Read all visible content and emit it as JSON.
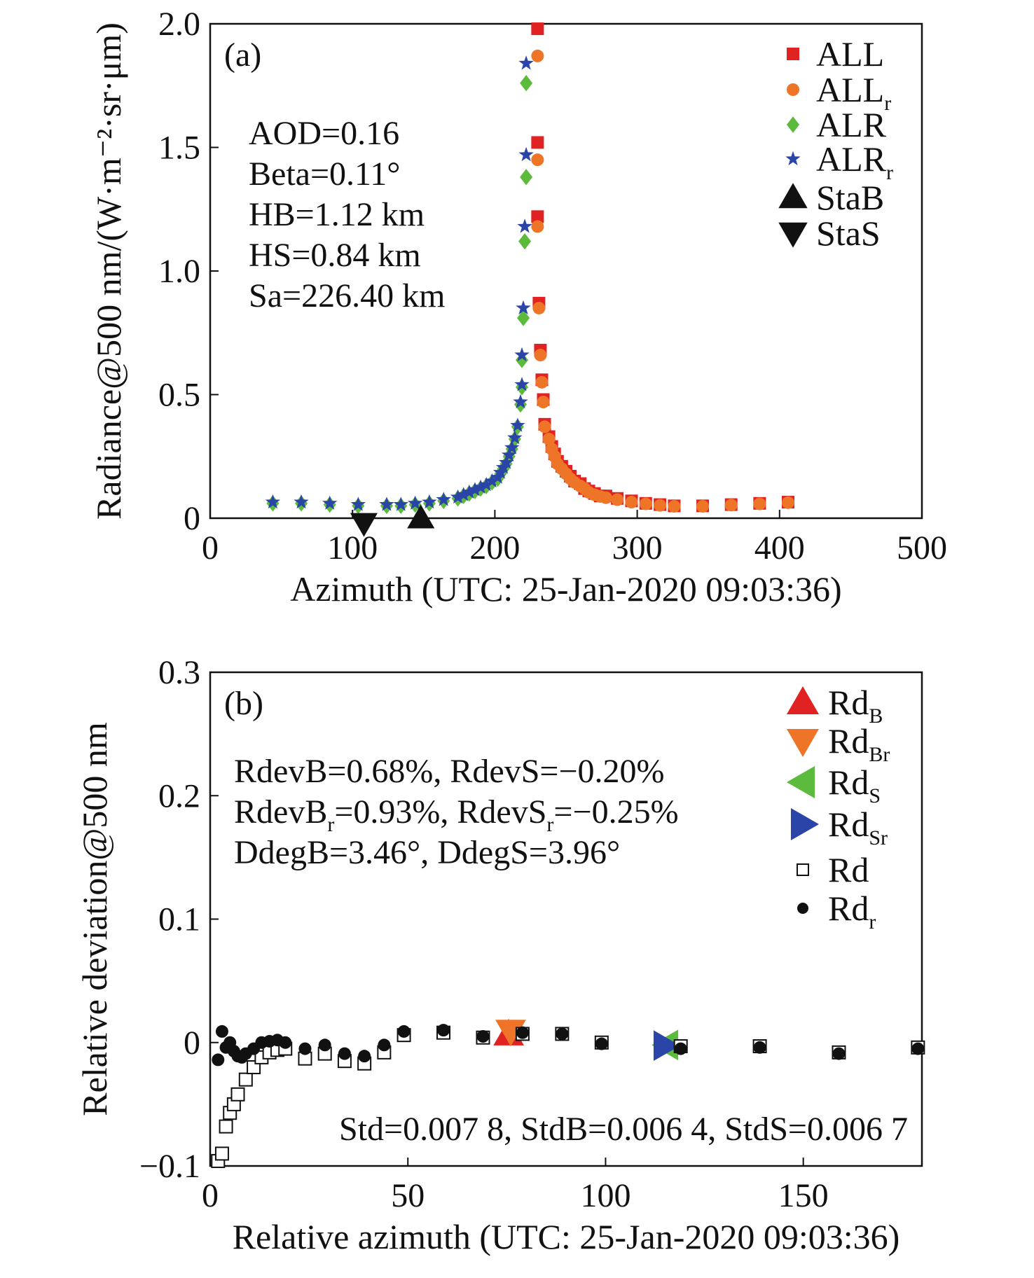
{
  "colors": {
    "ALL": "#e02222",
    "ALLr": "#ee7428",
    "ALR": "#5cba3c",
    "ALRr": "#2b44a8",
    "black": "#111111"
  },
  "chart_data": [
    {
      "type": "scatter",
      "panel_label": "(a)",
      "xlabel": "Azimuth (UTC: 25-Jan-2020 09:03:36)",
      "ylabel": "Radiance@500 nm/(W·m⁻²·sr·μm)",
      "xlim": [
        0,
        500
      ],
      "ylim": [
        0,
        2.0
      ],
      "xticks": [
        "0",
        "100",
        "200",
        "300",
        "400",
        "500"
      ],
      "yticks": [
        "0",
        "0.5",
        "1.0",
        "1.5",
        "2.0"
      ],
      "grid": false,
      "legend_position": "top-right",
      "annotations": [
        "AOD=0.16",
        "Beta=0.11°",
        "HB=1.12 km",
        "HS=0.84 km",
        "Sa=226.40 km"
      ],
      "series": [
        {
          "name": "ALL",
          "marker": "square",
          "color": "#e02222",
          "points": [
            [
              230,
              1.98
            ],
            [
              230,
              1.52
            ],
            [
              230,
              1.22
            ],
            [
              231,
              0.87
            ],
            [
              232,
              0.68
            ],
            [
              233,
              0.56
            ],
            [
              234,
              0.48
            ],
            [
              235,
              0.38
            ],
            [
              238,
              0.33
            ],
            [
              240,
              0.29
            ],
            [
              242,
              0.26
            ],
            [
              244,
              0.23
            ],
            [
              247,
              0.21
            ],
            [
              250,
              0.19
            ],
            [
              253,
              0.17
            ],
            [
              256,
              0.15
            ],
            [
              260,
              0.14
            ],
            [
              263,
              0.12
            ],
            [
              266,
              0.11
            ],
            [
              270,
              0.1
            ],
            [
              274,
              0.09
            ],
            [
              278,
              0.09
            ],
            [
              286,
              0.08
            ],
            [
              296,
              0.07
            ],
            [
              306,
              0.06
            ],
            [
              316,
              0.055
            ],
            [
              326,
              0.05
            ],
            [
              346,
              0.05
            ],
            [
              366,
              0.055
            ],
            [
              386,
              0.06
            ],
            [
              406,
              0.065
            ]
          ]
        },
        {
          "name": "ALLr",
          "marker": "circle",
          "color": "#ee7428",
          "points": [
            [
              230,
              1.87
            ],
            [
              230,
              1.45
            ],
            [
              230,
              1.18
            ],
            [
              231,
              0.85
            ],
            [
              232,
              0.66
            ],
            [
              233,
              0.55
            ],
            [
              234,
              0.47
            ],
            [
              235,
              0.37
            ],
            [
              238,
              0.32
            ],
            [
              240,
              0.28
            ],
            [
              242,
              0.25
            ],
            [
              244,
              0.22
            ],
            [
              247,
              0.2
            ],
            [
              250,
              0.18
            ],
            [
              253,
              0.16
            ],
            [
              256,
              0.145
            ],
            [
              260,
              0.13
            ],
            [
              263,
              0.12
            ],
            [
              266,
              0.105
            ],
            [
              270,
              0.095
            ],
            [
              274,
              0.088
            ],
            [
              278,
              0.083
            ],
            [
              286,
              0.075
            ],
            [
              296,
              0.065
            ],
            [
              306,
              0.058
            ],
            [
              316,
              0.052
            ],
            [
              326,
              0.048
            ],
            [
              346,
              0.048
            ],
            [
              366,
              0.053
            ],
            [
              386,
              0.058
            ],
            [
              406,
              0.063
            ]
          ]
        },
        {
          "name": "ALR",
          "marker": "diamond",
          "color": "#5cba3c",
          "points": [
            [
              44,
              0.06
            ],
            [
              64,
              0.06
            ],
            [
              84,
              0.055
            ],
            [
              104,
              0.05
            ],
            [
              124,
              0.05
            ],
            [
              134,
              0.05
            ],
            [
              144,
              0.055
            ],
            [
              154,
              0.06
            ],
            [
              164,
              0.07
            ],
            [
              174,
              0.08
            ],
            [
              178,
              0.09
            ],
            [
              182,
              0.1
            ],
            [
              186,
              0.11
            ],
            [
              190,
              0.12
            ],
            [
              194,
              0.13
            ],
            [
              198,
              0.145
            ],
            [
              202,
              0.16
            ],
            [
              204,
              0.18
            ],
            [
              206,
              0.2
            ],
            [
              208,
              0.22
            ],
            [
              210,
              0.25
            ],
            [
              212,
              0.28
            ],
            [
              214,
              0.32
            ],
            [
              216,
              0.37
            ],
            [
              218,
              0.46
            ],
            [
              219,
              0.53
            ],
            [
              219,
              0.64
            ],
            [
              220,
              0.81
            ],
            [
              221,
              1.12
            ],
            [
              222,
              1.38
            ],
            [
              222,
              1.76
            ]
          ]
        },
        {
          "name": "ALRr",
          "marker": "star",
          "color": "#2b44a8",
          "points": [
            [
              44,
              0.065
            ],
            [
              64,
              0.065
            ],
            [
              84,
              0.06
            ],
            [
              104,
              0.055
            ],
            [
              124,
              0.055
            ],
            [
              134,
              0.055
            ],
            [
              144,
              0.06
            ],
            [
              154,
              0.065
            ],
            [
              164,
              0.075
            ],
            [
              174,
              0.085
            ],
            [
              178,
              0.095
            ],
            [
              182,
              0.105
            ],
            [
              186,
              0.115
            ],
            [
              190,
              0.125
            ],
            [
              194,
              0.135
            ],
            [
              198,
              0.15
            ],
            [
              202,
              0.165
            ],
            [
              204,
              0.185
            ],
            [
              206,
              0.205
            ],
            [
              208,
              0.225
            ],
            [
              210,
              0.255
            ],
            [
              212,
              0.285
            ],
            [
              214,
              0.325
            ],
            [
              216,
              0.375
            ],
            [
              218,
              0.47
            ],
            [
              219,
              0.54
            ],
            [
              219,
              0.66
            ],
            [
              220,
              0.85
            ],
            [
              221,
              1.18
            ],
            [
              222,
              1.47
            ],
            [
              222,
              1.84
            ]
          ]
        },
        {
          "name": "StaB",
          "marker": "triangle-up",
          "color": "#111111",
          "points": [
            [
              148,
              0.0
            ]
          ]
        },
        {
          "name": "StaS",
          "marker": "triangle-down",
          "color": "#111111",
          "points": [
            [
              108,
              -0.02
            ]
          ]
        }
      ]
    },
    {
      "type": "scatter",
      "panel_label": "(b)",
      "xlabel": "Relative azimuth (UTC: 25-Jan-2020 09:03:36)",
      "ylabel": "Relative deviation@500 nm",
      "xlim": [
        0,
        180
      ],
      "ylim": [
        -0.1,
        0.3
      ],
      "xticks": [
        "0",
        "50",
        "100",
        "150"
      ],
      "yticks": [
        "−0.1",
        "0",
        "0.1",
        "0.2",
        "0.3"
      ],
      "grid": false,
      "legend_position": "top-right",
      "annotations": {
        "line1": "RdevB=0.68%, RdevS=−0.20%",
        "line2a": "RdevB",
        "line2b": "r",
        "line2c": "=0.93%, RdevS",
        "line2d": "r",
        "line2e": "=−0.25%",
        "line3": "DdegB=3.46°, DdegS=3.96°",
        "std": "Std=0.007 8, StdB=0.006 4, StdS=0.006 7"
      },
      "series": [
        {
          "name": "RdB",
          "marker": "triangle-up",
          "color": "#e02222",
          "points": [
            [
              75.5,
              0.0068
            ]
          ]
        },
        {
          "name": "RdBr",
          "marker": "triangle-down",
          "color": "#ee7428",
          "points": [
            [
              76,
              0.0093
            ]
          ]
        },
        {
          "name": "RdS",
          "marker": "triangle-left",
          "color": "#5cba3c",
          "points": [
            [
              115.5,
              -0.002
            ]
          ]
        },
        {
          "name": "RdSr",
          "marker": "triangle-right",
          "color": "#2b44a8",
          "points": [
            [
              115,
              -0.0025
            ]
          ]
        },
        {
          "name": "Rd",
          "marker": "open-square",
          "color": "#111111",
          "points": [
            [
              2,
              -0.096
            ],
            [
              3,
              -0.09
            ],
            [
              4,
              -0.068
            ],
            [
              5,
              -0.057
            ],
            [
              6,
              -0.05
            ],
            [
              7,
              -0.042
            ],
            [
              9,
              -0.03
            ],
            [
              11,
              -0.02
            ],
            [
              13,
              -0.012
            ],
            [
              15,
              -0.008
            ],
            [
              17,
              -0.006
            ],
            [
              19,
              -0.005
            ],
            [
              24,
              -0.013
            ],
            [
              29,
              -0.009
            ],
            [
              34,
              -0.015
            ],
            [
              39,
              -0.017
            ],
            [
              44,
              -0.008
            ],
            [
              49,
              0.006
            ],
            [
              59,
              0.008
            ],
            [
              69,
              0.004
            ],
            [
              79,
              0.007
            ],
            [
              89,
              0.007
            ],
            [
              99,
              0.0
            ],
            [
              119,
              -0.003
            ],
            [
              139,
              -0.003
            ],
            [
              159,
              -0.008
            ],
            [
              179,
              -0.004
            ]
          ]
        },
        {
          "name": "Rdr",
          "marker": "filled-circle",
          "color": "#111111",
          "points": [
            [
              2,
              -0.014
            ],
            [
              3,
              0.009
            ],
            [
              4,
              -0.004
            ],
            [
              5,
              0.0
            ],
            [
              6,
              -0.007
            ],
            [
              7,
              -0.011
            ],
            [
              8,
              -0.012
            ],
            [
              9,
              -0.009
            ],
            [
              11,
              -0.005
            ],
            [
              13,
              0.0
            ],
            [
              15,
              0.001
            ],
            [
              17,
              0.002
            ],
            [
              19,
              0.0
            ],
            [
              24,
              -0.005
            ],
            [
              29,
              -0.002
            ],
            [
              34,
              -0.009
            ],
            [
              39,
              -0.011
            ],
            [
              44,
              -0.002
            ],
            [
              49,
              0.009
            ],
            [
              59,
              0.01
            ],
            [
              69,
              0.005
            ],
            [
              79,
              0.008
            ],
            [
              89,
              0.007
            ],
            [
              99,
              -0.001
            ],
            [
              119,
              -0.005
            ],
            [
              139,
              -0.004
            ],
            [
              159,
              -0.009
            ],
            [
              179,
              -0.005
            ]
          ]
        }
      ]
    }
  ],
  "legend_a": [
    {
      "main": "ALL",
      "sub": ""
    },
    {
      "main": "ALL",
      "sub": "r"
    },
    {
      "main": "ALR",
      "sub": ""
    },
    {
      "main": "ALR",
      "sub": "r"
    },
    {
      "main": "StaB",
      "sub": ""
    },
    {
      "main": "StaS",
      "sub": ""
    }
  ],
  "legend_b": [
    {
      "main": "Rd",
      "sub": "B"
    },
    {
      "main": "Rd",
      "sub": "Br"
    },
    {
      "main": "Rd",
      "sub": "S"
    },
    {
      "main": "Rd",
      "sub": "Sr"
    },
    {
      "main": "Rd",
      "sub": ""
    },
    {
      "main": "Rd",
      "sub": "r"
    }
  ]
}
